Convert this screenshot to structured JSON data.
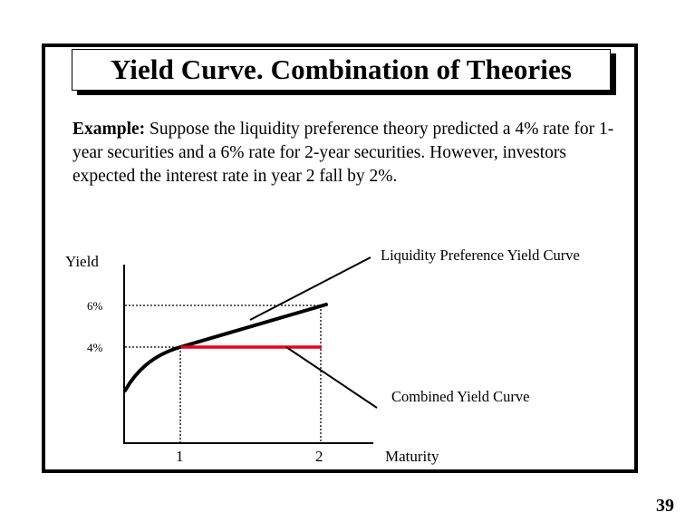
{
  "slide": {
    "title": "Yield Curve. Combination of Theories",
    "example_lead": "Example:",
    "example_text": " Suppose the liquidity preference theory predicted a 4% rate for 1-year securities and a 6% rate for 2-year securities.  However, investors expected the interest rate in year 2 fall by 2%.",
    "page_number": "39"
  },
  "diagram": {
    "y_axis_label": "Yield",
    "x_axis_label": "Maturity",
    "y_ticks": [
      "6%",
      "4%"
    ],
    "x_ticks": [
      "1",
      "2"
    ],
    "liquidity_label": "Liquidity Preference Yield Curve",
    "combined_label": "Combined Yield Curve",
    "colors": {
      "combined_curve": "#e8001c",
      "liquidity_curve": "#000000"
    }
  }
}
